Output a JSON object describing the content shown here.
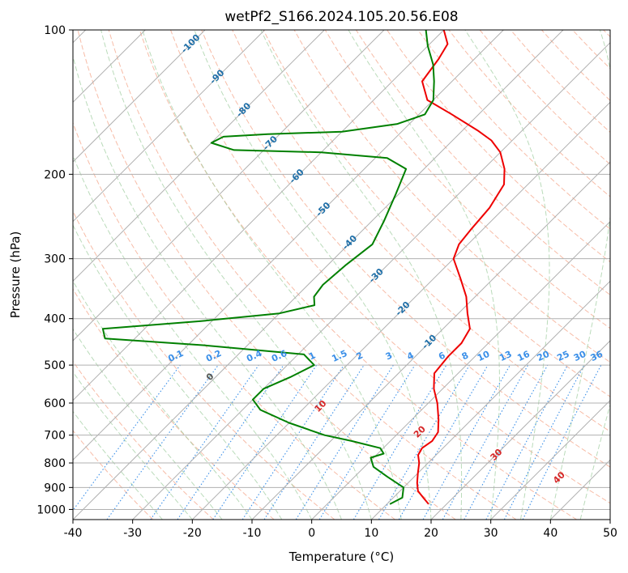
{
  "chart_data": {
    "type": "line",
    "subtype": "skew-t log-p",
    "title": "wetPf2_S166.2024.105.20.56.E08",
    "xlabel": "Temperature (°C)",
    "ylabel": "Pressure (hPa)",
    "xlim": [
      -40,
      50
    ],
    "ylim": [
      1050,
      100
    ],
    "y_scale": "log",
    "grid": true,
    "x_ticks": [
      -40,
      -30,
      -20,
      -10,
      0,
      10,
      20,
      30,
      40,
      50
    ],
    "y_ticks": [
      100,
      200,
      300,
      400,
      500,
      600,
      700,
      800,
      900,
      1000
    ],
    "series": [
      {
        "name": "",
        "role": "temperature",
        "color": "#ee0000",
        "points": [
          {
            "p": 975,
            "t": 17.0
          },
          {
            "p": 945,
            "t": 15.0
          },
          {
            "p": 915,
            "t": 13.0
          },
          {
            "p": 880,
            "t": 11.5
          },
          {
            "p": 840,
            "t": 10.0
          },
          {
            "p": 800,
            "t": 8.5
          },
          {
            "p": 770,
            "t": 7.0
          },
          {
            "p": 745,
            "t": 6.5
          },
          {
            "p": 720,
            "t": 7.0
          },
          {
            "p": 690,
            "t": 6.5
          },
          {
            "p": 650,
            "t": 4.5
          },
          {
            "p": 600,
            "t": 1.5
          },
          {
            "p": 560,
            "t": -1.5
          },
          {
            "p": 520,
            "t": -4.0
          },
          {
            "p": 480,
            "t": -4.5
          },
          {
            "p": 450,
            "t": -4.5
          },
          {
            "p": 420,
            "t": -5.5
          },
          {
            "p": 390,
            "t": -8.5
          },
          {
            "p": 360,
            "t": -11.5
          },
          {
            "p": 330,
            "t": -15.5
          },
          {
            "p": 300,
            "t": -20.0
          },
          {
            "p": 280,
            "t": -21.5
          },
          {
            "p": 260,
            "t": -22.0
          },
          {
            "p": 235,
            "t": -22.5
          },
          {
            "p": 210,
            "t": -24.0
          },
          {
            "p": 195,
            "t": -26.5
          },
          {
            "p": 180,
            "t": -30.0
          },
          {
            "p": 170,
            "t": -33.5
          },
          {
            "p": 162,
            "t": -37.5
          },
          {
            "p": 150,
            "t": -44.5
          },
          {
            "p": 140,
            "t": -51.0
          },
          {
            "p": 128,
            "t": -55.0
          },
          {
            "p": 115,
            "t": -56.0
          },
          {
            "p": 107,
            "t": -57.0
          },
          {
            "p": 100,
            "t": -60.0
          }
        ]
      },
      {
        "name": "",
        "role": "dewpoint",
        "color": "#008000",
        "points": [
          {
            "p": 975,
            "t": 10.5
          },
          {
            "p": 945,
            "t": 11.5
          },
          {
            "p": 900,
            "t": 10.0
          },
          {
            "p": 855,
            "t": 5.5
          },
          {
            "p": 815,
            "t": 1.5
          },
          {
            "p": 780,
            "t": -0.5
          },
          {
            "p": 765,
            "t": 1.0
          },
          {
            "p": 745,
            "t": -0.5
          },
          {
            "p": 720,
            "t": -6.5
          },
          {
            "p": 700,
            "t": -12.0
          },
          {
            "p": 660,
            "t": -20.0
          },
          {
            "p": 620,
            "t": -27.0
          },
          {
            "p": 590,
            "t": -30.0
          },
          {
            "p": 560,
            "t": -30.0
          },
          {
            "p": 530,
            "t": -27.5
          },
          {
            "p": 500,
            "t": -25.5
          },
          {
            "p": 475,
            "t": -29.0
          },
          {
            "p": 455,
            "t": -47.0
          },
          {
            "p": 440,
            "t": -65.0
          },
          {
            "p": 420,
            "t": -67.0
          },
          {
            "p": 405,
            "t": -52.0
          },
          {
            "p": 390,
            "t": -40.0
          },
          {
            "p": 375,
            "t": -35.5
          },
          {
            "p": 360,
            "t": -37.0
          },
          {
            "p": 340,
            "t": -37.5
          },
          {
            "p": 310,
            "t": -37.0
          },
          {
            "p": 280,
            "t": -36.0
          },
          {
            "p": 250,
            "t": -38.0
          },
          {
            "p": 220,
            "t": -40.5
          },
          {
            "p": 195,
            "t": -43.0
          },
          {
            "p": 185,
            "t": -48.0
          },
          {
            "p": 180,
            "t": -60.0
          },
          {
            "p": 178,
            "t": -75.0
          },
          {
            "p": 172,
            "t": -80.0
          },
          {
            "p": 167,
            "t": -79.0
          },
          {
            "p": 165,
            "t": -72.0
          },
          {
            "p": 163,
            "t": -60.0
          },
          {
            "p": 157,
            "t": -52.0
          },
          {
            "p": 150,
            "t": -49.0
          },
          {
            "p": 140,
            "t": -50.0
          },
          {
            "p": 128,
            "t": -53.0
          },
          {
            "p": 118,
            "t": -56.0
          },
          {
            "p": 108,
            "t": -60.0
          },
          {
            "p": 100,
            "t": -63.0
          }
        ]
      }
    ],
    "isotherm_labels": [
      -100,
      -90,
      -80,
      -70,
      -60,
      -50,
      -40,
      -30,
      -20,
      -10
    ],
    "mixing_ratio_labels": [
      "0.1",
      "0.2",
      "0.4",
      "0.6",
      "1",
      "1.5",
      "2",
      "3",
      "4",
      "6",
      "8",
      "10",
      "13",
      "16",
      "20",
      "25",
      "30",
      "36"
    ],
    "moist_adiabat_labels": [
      0,
      10,
      20,
      30,
      40
    ],
    "colors": {
      "temperature": "#ee0000",
      "dewpoint": "#008000",
      "isotherm_label": "#1f6fa8",
      "mixing_ratio": "#3a8fe8",
      "dry_adiabat": "#f4a58a",
      "moist_adiabat": "#9ccc9c",
      "moist_label": "#d62728",
      "grid": "#b0b0b0"
    }
  }
}
